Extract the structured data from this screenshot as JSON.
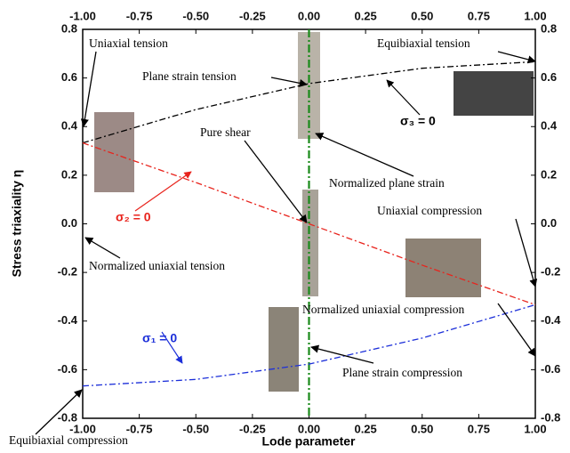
{
  "chart_data": {
    "type": "line",
    "x_label": "Lode parameter",
    "y_label": "Stress triaxiality η",
    "xlim": [
      -1,
      1
    ],
    "ylim": [
      -0.8,
      0.8
    ],
    "xticks": [
      {
        "value": -1,
        "label": "-1.00"
      },
      {
        "value": -0.75,
        "label": "-0.75"
      },
      {
        "value": -0.5,
        "label": "-0.50"
      },
      {
        "value": -0.25,
        "label": "-0.25"
      },
      {
        "value": 0,
        "label": "0.00"
      },
      {
        "value": 0.25,
        "label": "0.25"
      },
      {
        "value": 0.5,
        "label": "0.50"
      },
      {
        "value": 0.75,
        "label": "0.75"
      },
      {
        "value": 1,
        "label": "1.00"
      }
    ],
    "yticks": [
      {
        "value": -0.8,
        "label": "-0.8"
      },
      {
        "value": -0.6,
        "label": "-0.6"
      },
      {
        "value": -0.4,
        "label": "-0.4"
      },
      {
        "value": -0.2,
        "label": "-0.2"
      },
      {
        "value": 0,
        "label": "0.0"
      },
      0.2,
      0.4,
      0.6,
      0.8
    ],
    "x": [
      -1,
      -0.5,
      0,
      0.5,
      1
    ],
    "series": [
      {
        "name": "σ₃ = 0",
        "color": "#000000",
        "values": [
          0.333,
          0.47,
          0.577,
          0.64,
          0.667
        ]
      },
      {
        "name": "σ₂ = 0",
        "color": "#e8231c",
        "values": [
          0.333,
          0.17,
          0,
          -0.17,
          -0.333
        ]
      },
      {
        "name": "σ₁ = 0",
        "color": "#1c2fd9",
        "values": [
          -0.667,
          -0.64,
          -0.577,
          -0.47,
          -0.333
        ]
      }
    ],
    "vline": {
      "x": 0,
      "color": "#1a8a1a"
    },
    "annotations": [
      "Uniaxial tension",
      "Equibiaxial tension",
      "Plane strain tension",
      "Pure shear",
      "Normalized plane strain",
      "Uniaxial compression",
      "Normalized uniaxial tension",
      "Normalized uniaxial compression",
      "Plane strain compression",
      "Equibiaxial compression"
    ]
  }
}
